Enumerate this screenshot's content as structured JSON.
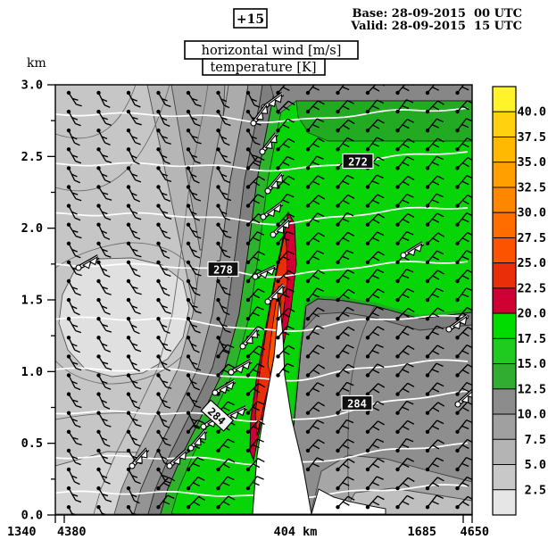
{
  "header": {
    "offset_badge": "+15",
    "base_line": "Base: 28-09-2015  00 UTC",
    "valid_line": "Valid: 28-09-2015  15 UTC",
    "title_line1": "horizontal wind [m/s]",
    "title_line2": "temperature [K]"
  },
  "axes": {
    "y_unit": "km",
    "y_tick_labels": [
      "3.0",
      "2.5",
      "2.0",
      "1.5",
      "1.0",
      "0.5",
      "0.0"
    ],
    "x_left_labels": [
      "1340",
      "4380"
    ],
    "x_center_label": "404 km",
    "x_right_labels": [
      "1685",
      "4650"
    ]
  },
  "colorbar": {
    "tick_labels": [
      "40.0",
      "37.5",
      "35.0",
      "32.5",
      "30.0",
      "27.5",
      "25.0",
      "22.5",
      "20.0",
      "17.5",
      "15.0",
      "12.5",
      "10.0",
      "7.5",
      "5.0",
      "2.5"
    ],
    "cell_colors_top_to_bottom": [
      "#fff32a",
      "#ffd10e",
      "#ffb900",
      "#ffa000",
      "#ff8700",
      "#ff6d00",
      "#fb5300",
      "#ea2e0a",
      "#cf0034",
      "#00dc00",
      "#1ecb1e",
      "#31ad31",
      "#8c8c8c",
      "#a0a0a0",
      "#b4b4b4",
      "#c8c8c8",
      "#e6e6e6"
    ]
  },
  "contour_labels": {
    "temperature": [
      "272",
      "278",
      "284",
      "284"
    ]
  },
  "chart_data": {
    "type": "heatmap",
    "title": "horizontal wind [m/s]",
    "subtitle": "temperature [K]",
    "lead_time_hours": 15,
    "base_time": "28-09-2015 00 UTC",
    "valid_time": "28-09-2015 15 UTC",
    "y_axis": {
      "label": "km",
      "min": 0.0,
      "max": 3.0,
      "tick_step": 0.5,
      "minor_step": 0.25
    },
    "x_axis": {
      "length_label": "404 km",
      "start_labels": [
        "1340",
        "4380"
      ],
      "end_labels": [
        "1685",
        "4650"
      ]
    },
    "wind_speed_levels_ms": [
      2.5,
      5.0,
      7.5,
      10.0,
      12.5,
      15.0,
      17.5,
      20.0,
      22.5,
      25.0,
      27.5,
      30.0,
      32.5,
      35.0,
      37.5,
      40.0
    ],
    "level_colors_low_to_high": [
      "#e6e6e6",
      "#c8c8c8",
      "#b4b4b4",
      "#a0a0a0",
      "#8c8c8c",
      "#31ad31",
      "#1ecb1e",
      "#00dc00",
      "#cf0034",
      "#ea2e0a",
      "#fb5300",
      "#ff6d00",
      "#ff8700",
      "#ffa000",
      "#ffb900",
      "#ffd10e",
      "#fff32a"
    ],
    "temperature_contours_K": {
      "labeled_values": [
        272,
        278,
        284
      ],
      "contour_interval": 2
    },
    "features": {
      "low_level_jet": {
        "position": "center of cross-section",
        "height_range_km": [
          0.4,
          1.9
        ],
        "core_speed_band_ms": [
          22.5,
          25.0
        ]
      },
      "right_sector_aloft_speed_band_ms": [
        15.0,
        20.0
      ],
      "left_sector_speed_band_ms": [
        2.5,
        12.5
      ],
      "terrain_gap": "white wedge near section center below ~0.8 km"
    }
  }
}
